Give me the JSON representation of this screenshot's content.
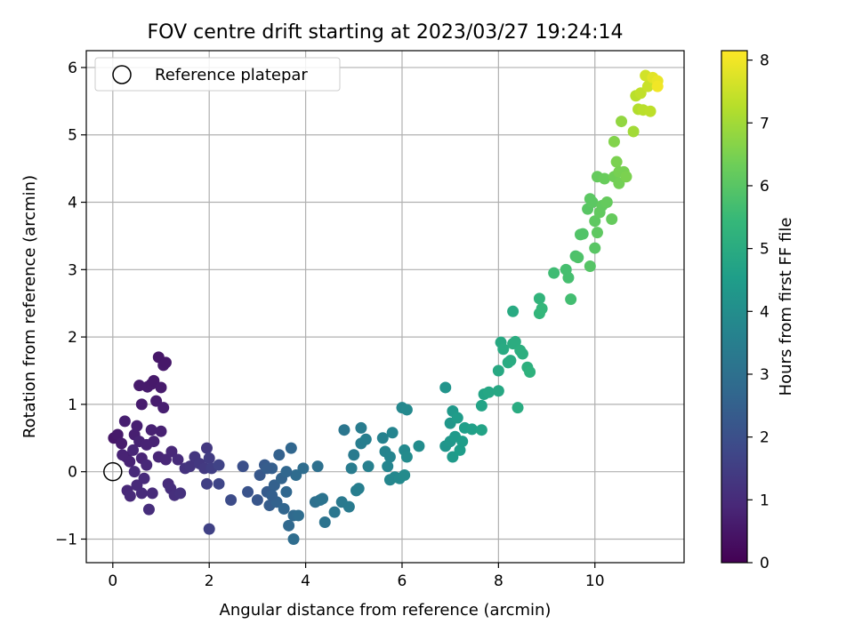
{
  "chart_data": {
    "type": "scatter",
    "title": "FOV centre drift starting at 2023/03/27 19:24:14",
    "xlabel": "Angular distance from reference (arcmin)",
    "ylabel": "Rotation from reference (arcmin)",
    "colorbar_label": "Hours from first FF file",
    "xlim": [
      -0.55,
      11.85
    ],
    "ylim": [
      -1.35,
      6.25
    ],
    "clim": [
      0,
      8.15
    ],
    "grid": true,
    "legend_position": "upper-left",
    "colormap": "viridis",
    "xticks": [
      0,
      2,
      4,
      6,
      8,
      10
    ],
    "yticks": [
      -1,
      0,
      1,
      2,
      3,
      4,
      5,
      6
    ],
    "cticks": [
      0,
      1,
      2,
      3,
      4,
      5,
      6,
      7,
      8
    ],
    "reference": {
      "label": "Reference platepar",
      "x": 0,
      "y": 0
    },
    "points": [
      {
        "x": 0.02,
        "y": 0.5,
        "t": 0.5
      },
      {
        "x": 0.1,
        "y": 0.55,
        "t": 0.55
      },
      {
        "x": 0.18,
        "y": 0.42,
        "t": 0.6
      },
      {
        "x": 0.25,
        "y": 0.75,
        "t": 0.7
      },
      {
        "x": 0.28,
        "y": 0.22,
        "t": 0.75
      },
      {
        "x": 0.35,
        "y": 0.15,
        "t": 0.8
      },
      {
        "x": 0.3,
        "y": -0.28,
        "t": 0.9
      },
      {
        "x": 0.36,
        "y": -0.36,
        "t": 0.95
      },
      {
        "x": 0.42,
        "y": 0.32,
        "t": 0.85
      },
      {
        "x": 0.45,
        "y": 0.55,
        "t": 0.7
      },
      {
        "x": 0.5,
        "y": 0.68,
        "t": 0.72
      },
      {
        "x": 0.55,
        "y": 1.28,
        "t": 0.6
      },
      {
        "x": 0.6,
        "y": 1.0,
        "t": 0.62
      },
      {
        "x": 0.55,
        "y": 0.45,
        "t": 0.78
      },
      {
        "x": 0.6,
        "y": 0.2,
        "t": 0.82
      },
      {
        "x": 0.5,
        "y": -0.2,
        "t": 0.95
      },
      {
        "x": 0.6,
        "y": -0.32,
        "t": 1.0
      },
      {
        "x": 0.65,
        "y": -0.1,
        "t": 0.98
      },
      {
        "x": 0.7,
        "y": 0.1,
        "t": 0.9
      },
      {
        "x": 0.72,
        "y": 1.26,
        "t": 0.6
      },
      {
        "x": 0.8,
        "y": 1.3,
        "t": 0.58
      },
      {
        "x": 0.85,
        "y": 1.35,
        "t": 0.55
      },
      {
        "x": 0.75,
        "y": -0.56,
        "t": 1.05
      },
      {
        "x": 0.8,
        "y": 0.62,
        "t": 0.75
      },
      {
        "x": 0.85,
        "y": 0.45,
        "t": 0.78
      },
      {
        "x": 0.9,
        "y": 1.05,
        "t": 0.65
      },
      {
        "x": 0.95,
        "y": 1.7,
        "t": 0.5
      },
      {
        "x": 1.0,
        "y": 1.25,
        "t": 0.6
      },
      {
        "x": 1.05,
        "y": 1.58,
        "t": 0.55
      },
      {
        "x": 1.1,
        "y": 1.62,
        "t": 0.52
      },
      {
        "x": 0.82,
        "y": -0.32,
        "t": 1.0
      },
      {
        "x": 0.95,
        "y": 0.22,
        "t": 0.85
      },
      {
        "x": 1.0,
        "y": 0.6,
        "t": 0.75
      },
      {
        "x": 1.05,
        "y": 0.95,
        "t": 0.7
      },
      {
        "x": 1.1,
        "y": 0.18,
        "t": 0.88
      },
      {
        "x": 1.15,
        "y": -0.18,
        "t": 1.0
      },
      {
        "x": 1.2,
        "y": -0.25,
        "t": 1.05
      },
      {
        "x": 1.22,
        "y": 0.3,
        "t": 0.9
      },
      {
        "x": 1.28,
        "y": -0.35,
        "t": 1.1
      },
      {
        "x": 1.35,
        "y": 0.18,
        "t": 1.0
      },
      {
        "x": 1.4,
        "y": -0.32,
        "t": 1.15
      },
      {
        "x": 0.45,
        "y": 0.0,
        "t": 0.95
      },
      {
        "x": 0.7,
        "y": 0.4,
        "t": 0.8
      },
      {
        "x": 0.2,
        "y": 0.25,
        "t": 0.8
      },
      {
        "x": 1.5,
        "y": 0.05,
        "t": 1.2
      },
      {
        "x": 1.6,
        "y": 0.08,
        "t": 1.25
      },
      {
        "x": 1.7,
        "y": 0.22,
        "t": 1.3
      },
      {
        "x": 1.8,
        "y": 0.12,
        "t": 1.35
      },
      {
        "x": 1.9,
        "y": 0.05,
        "t": 1.4
      },
      {
        "x": 1.95,
        "y": 0.35,
        "t": 1.35
      },
      {
        "x": 2.0,
        "y": 0.2,
        "t": 1.45
      },
      {
        "x": 2.05,
        "y": 0.05,
        "t": 1.5
      },
      {
        "x": 1.95,
        "y": -0.18,
        "t": 1.55
      },
      {
        "x": 2.0,
        "y": -0.85,
        "t": 1.6
      },
      {
        "x": 2.2,
        "y": -0.18,
        "t": 1.7
      },
      {
        "x": 2.2,
        "y": 0.1,
        "t": 1.65
      },
      {
        "x": 2.45,
        "y": -0.42,
        "t": 1.9
      },
      {
        "x": 2.7,
        "y": 0.08,
        "t": 2.0
      },
      {
        "x": 2.8,
        "y": -0.3,
        "t": 2.1
      },
      {
        "x": 3.0,
        "y": -0.42,
        "t": 2.2
      },
      {
        "x": 3.05,
        "y": -0.05,
        "t": 2.25
      },
      {
        "x": 3.15,
        "y": 0.1,
        "t": 2.3
      },
      {
        "x": 3.2,
        "y": -0.3,
        "t": 2.35
      },
      {
        "x": 3.25,
        "y": -0.5,
        "t": 2.4
      },
      {
        "x": 3.3,
        "y": 0.05,
        "t": 2.45
      },
      {
        "x": 3.35,
        "y": -0.2,
        "t": 2.5
      },
      {
        "x": 3.4,
        "y": -0.45,
        "t": 2.55
      },
      {
        "x": 3.45,
        "y": 0.25,
        "t": 2.5
      },
      {
        "x": 3.5,
        "y": -0.1,
        "t": 2.6
      },
      {
        "x": 3.55,
        "y": -0.55,
        "t": 2.65
      },
      {
        "x": 3.6,
        "y": -0.3,
        "t": 2.7
      },
      {
        "x": 3.65,
        "y": -0.8,
        "t": 2.75
      },
      {
        "x": 3.7,
        "y": 0.35,
        "t": 2.7
      },
      {
        "x": 3.75,
        "y": -0.65,
        "t": 2.8
      },
      {
        "x": 3.8,
        "y": -0.05,
        "t": 2.85
      },
      {
        "x": 3.75,
        "y": -1.0,
        "t": 2.9
      },
      {
        "x": 3.85,
        "y": -0.65,
        "t": 2.88
      },
      {
        "x": 3.6,
        "y": 0.0,
        "t": 2.7
      },
      {
        "x": 3.3,
        "y": -0.35,
        "t": 2.45
      },
      {
        "x": 3.2,
        "y": 0.05,
        "t": 2.4
      },
      {
        "x": 3.95,
        "y": 0.05,
        "t": 2.9
      },
      {
        "x": 4.2,
        "y": -0.45,
        "t": 3.0
      },
      {
        "x": 4.25,
        "y": 0.08,
        "t": 3.0
      },
      {
        "x": 4.3,
        "y": -0.42,
        "t": 3.05
      },
      {
        "x": 4.35,
        "y": -0.4,
        "t": 3.1
      },
      {
        "x": 4.4,
        "y": -0.75,
        "t": 3.1
      },
      {
        "x": 4.6,
        "y": -0.6,
        "t": 3.2
      },
      {
        "x": 4.75,
        "y": -0.45,
        "t": 3.3
      },
      {
        "x": 4.8,
        "y": 0.62,
        "t": 3.2
      },
      {
        "x": 4.9,
        "y": -0.52,
        "t": 3.35
      },
      {
        "x": 4.95,
        "y": 0.05,
        "t": 3.4
      },
      {
        "x": 5.0,
        "y": 0.25,
        "t": 3.35
      },
      {
        "x": 5.05,
        "y": -0.28,
        "t": 3.45
      },
      {
        "x": 5.1,
        "y": -0.25,
        "t": 3.5
      },
      {
        "x": 5.15,
        "y": 0.42,
        "t": 3.45
      },
      {
        "x": 5.15,
        "y": 0.65,
        "t": 3.4
      },
      {
        "x": 5.25,
        "y": 0.48,
        "t": 3.5
      },
      {
        "x": 5.3,
        "y": 0.08,
        "t": 3.55
      },
      {
        "x": 5.6,
        "y": 0.5,
        "t": 3.6
      },
      {
        "x": 5.65,
        "y": 0.3,
        "t": 3.65
      },
      {
        "x": 5.7,
        "y": 0.08,
        "t": 3.7
      },
      {
        "x": 5.75,
        "y": -0.12,
        "t": 3.75
      },
      {
        "x": 5.8,
        "y": 0.58,
        "t": 3.7
      },
      {
        "x": 5.85,
        "y": -0.08,
        "t": 3.8
      },
      {
        "x": 5.95,
        "y": -0.1,
        "t": 3.85
      },
      {
        "x": 6.0,
        "y": 0.95,
        "t": 3.8
      },
      {
        "x": 6.05,
        "y": 0.32,
        "t": 3.85
      },
      {
        "x": 6.05,
        "y": -0.05,
        "t": 3.9
      },
      {
        "x": 6.1,
        "y": 0.92,
        "t": 3.85
      },
      {
        "x": 6.1,
        "y": 0.22,
        "t": 3.9
      },
      {
        "x": 6.35,
        "y": 0.38,
        "t": 3.95
      },
      {
        "x": 5.75,
        "y": 0.22,
        "t": 3.7
      },
      {
        "x": 6.9,
        "y": 1.25,
        "t": 4.2
      },
      {
        "x": 6.9,
        "y": 0.38,
        "t": 4.25
      },
      {
        "x": 7.0,
        "y": 0.45,
        "t": 4.3
      },
      {
        "x": 7.0,
        "y": 0.72,
        "t": 4.3
      },
      {
        "x": 7.05,
        "y": 0.9,
        "t": 4.35
      },
      {
        "x": 7.05,
        "y": 0.22,
        "t": 4.4
      },
      {
        "x": 7.1,
        "y": 0.52,
        "t": 4.4
      },
      {
        "x": 7.15,
        "y": 0.8,
        "t": 4.45
      },
      {
        "x": 7.2,
        "y": 0.32,
        "t": 4.5
      },
      {
        "x": 7.25,
        "y": 0.45,
        "t": 4.5
      },
      {
        "x": 7.3,
        "y": 0.65,
        "t": 4.55
      },
      {
        "x": 7.45,
        "y": 0.63,
        "t": 4.6
      },
      {
        "x": 7.65,
        "y": 0.62,
        "t": 4.7
      },
      {
        "x": 7.65,
        "y": 0.98,
        "t": 4.7
      },
      {
        "x": 7.7,
        "y": 1.15,
        "t": 4.75
      },
      {
        "x": 7.8,
        "y": 1.18,
        "t": 4.8
      },
      {
        "x": 8.0,
        "y": 1.2,
        "t": 4.85
      },
      {
        "x": 8.0,
        "y": 1.5,
        "t": 4.9
      },
      {
        "x": 8.05,
        "y": 1.92,
        "t": 4.9
      },
      {
        "x": 8.1,
        "y": 1.82,
        "t": 4.95
      },
      {
        "x": 8.2,
        "y": 1.62,
        "t": 5.0
      },
      {
        "x": 8.25,
        "y": 1.65,
        "t": 5.0
      },
      {
        "x": 8.3,
        "y": 2.38,
        "t": 4.95
      },
      {
        "x": 8.3,
        "y": 1.9,
        "t": 5.05
      },
      {
        "x": 8.35,
        "y": 1.93,
        "t": 5.05
      },
      {
        "x": 8.4,
        "y": 0.95,
        "t": 5.0
      },
      {
        "x": 8.45,
        "y": 1.8,
        "t": 5.1
      },
      {
        "x": 8.5,
        "y": 1.75,
        "t": 5.1
      },
      {
        "x": 8.6,
        "y": 1.55,
        "t": 5.15
      },
      {
        "x": 8.65,
        "y": 1.48,
        "t": 5.2
      },
      {
        "x": 8.85,
        "y": 2.57,
        "t": 5.3
      },
      {
        "x": 8.85,
        "y": 2.35,
        "t": 5.35
      },
      {
        "x": 8.9,
        "y": 2.42,
        "t": 5.4
      },
      {
        "x": 9.15,
        "y": 2.95,
        "t": 5.6
      },
      {
        "x": 9.4,
        "y": 3.0,
        "t": 5.7
      },
      {
        "x": 9.45,
        "y": 2.88,
        "t": 5.7
      },
      {
        "x": 9.5,
        "y": 2.56,
        "t": 5.65
      },
      {
        "x": 9.6,
        "y": 3.2,
        "t": 5.8
      },
      {
        "x": 9.65,
        "y": 3.18,
        "t": 5.85
      },
      {
        "x": 9.7,
        "y": 3.52,
        "t": 5.9
      },
      {
        "x": 9.75,
        "y": 3.53,
        "t": 5.9
      },
      {
        "x": 9.85,
        "y": 3.9,
        "t": 6.0
      },
      {
        "x": 9.9,
        "y": 3.05,
        "t": 5.95
      },
      {
        "x": 9.9,
        "y": 4.05,
        "t": 6.05
      },
      {
        "x": 9.95,
        "y": 4.0,
        "t": 6.05
      },
      {
        "x": 10.0,
        "y": 3.72,
        "t": 6.1
      },
      {
        "x": 10.0,
        "y": 3.32,
        "t": 6.0
      },
      {
        "x": 10.05,
        "y": 3.55,
        "t": 6.1
      },
      {
        "x": 10.05,
        "y": 4.38,
        "t": 6.2
      },
      {
        "x": 10.1,
        "y": 3.85,
        "t": 6.15
      },
      {
        "x": 10.15,
        "y": 3.95,
        "t": 6.15
      },
      {
        "x": 10.2,
        "y": 4.35,
        "t": 6.25
      },
      {
        "x": 10.25,
        "y": 4.0,
        "t": 6.2
      },
      {
        "x": 10.35,
        "y": 3.75,
        "t": 6.2
      },
      {
        "x": 10.4,
        "y": 4.38,
        "t": 6.35
      },
      {
        "x": 10.4,
        "y": 4.9,
        "t": 6.6
      },
      {
        "x": 10.45,
        "y": 4.6,
        "t": 6.5
      },
      {
        "x": 10.5,
        "y": 4.45,
        "t": 6.45
      },
      {
        "x": 10.5,
        "y": 4.28,
        "t": 6.4
      },
      {
        "x": 10.55,
        "y": 5.2,
        "t": 6.8
      },
      {
        "x": 10.6,
        "y": 4.45,
        "t": 6.45
      },
      {
        "x": 10.65,
        "y": 4.38,
        "t": 6.5
      },
      {
        "x": 10.8,
        "y": 5.05,
        "t": 7.0
      },
      {
        "x": 10.85,
        "y": 5.58,
        "t": 7.3
      },
      {
        "x": 10.9,
        "y": 5.38,
        "t": 7.2
      },
      {
        "x": 10.95,
        "y": 5.62,
        "t": 7.4
      },
      {
        "x": 11.0,
        "y": 5.37,
        "t": 7.3
      },
      {
        "x": 11.05,
        "y": 5.88,
        "t": 7.6
      },
      {
        "x": 11.1,
        "y": 5.72,
        "t": 7.5
      },
      {
        "x": 11.15,
        "y": 5.35,
        "t": 7.35
      },
      {
        "x": 11.2,
        "y": 5.85,
        "t": 7.8
      },
      {
        "x": 11.3,
        "y": 5.8,
        "t": 7.9
      },
      {
        "x": 11.3,
        "y": 5.72,
        "t": 8.0
      }
    ]
  }
}
